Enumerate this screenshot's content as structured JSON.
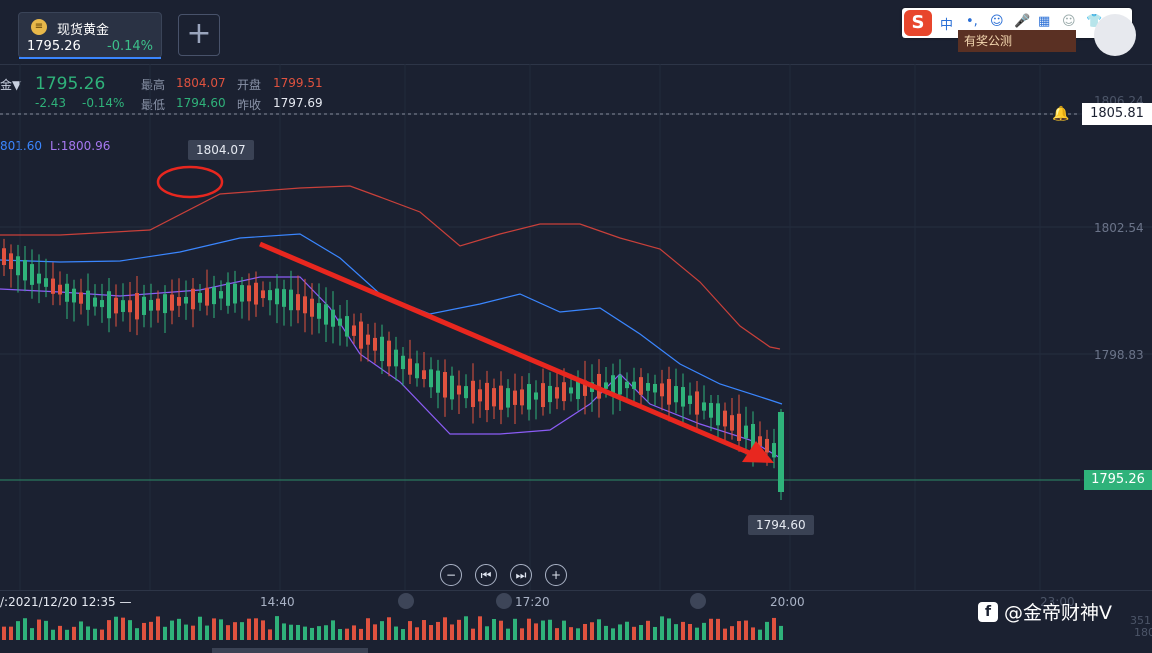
{
  "tab": {
    "name": "现货黄金",
    "price": "1795.26",
    "change": "-0.14%"
  },
  "add_button_label": "+",
  "ime": {
    "items": [
      "中",
      "•,",
      "☺",
      "🎤",
      "▦",
      "☺",
      "👕",
      "⠿"
    ]
  },
  "promo": "有奖公测",
  "quote": {
    "dropdown": "金▼",
    "last": "1795.26",
    "change_abs": "-2.43",
    "change_pct": "-0.14%",
    "high_label": "最高",
    "high_value": "1804.07",
    "low_label": "最低",
    "low_value": "1794.60",
    "open_label": "开盘",
    "open_value": "1799.51",
    "prev_close_label": "昨收",
    "prev_close_value": "1797.69"
  },
  "indicator": {
    "mid": "801.60",
    "lower": "L:1800.96"
  },
  "y_axis": {
    "ticks": [
      "1806.24",
      "1802.54",
      "1798.83"
    ]
  },
  "current_price_label": "1805.81",
  "last_price_tag": "1795.26",
  "high_tip": "1804.07",
  "low_tip": "1794.60",
  "controls": {
    "zoom_out": "−",
    "prev": "⏮",
    "next": "⏭",
    "zoom_in": "+"
  },
  "time_axis": {
    "cursor": "/:2021/12/20 12:35 —",
    "t1": "14:40",
    "t2": "17:20",
    "t3": "20:00",
    "t4": "23:00"
  },
  "volume_axis": {
    "top": "351",
    "bottom": "180"
  },
  "watermark": "@金帝财神V",
  "colors": {
    "up": "#e0523f",
    "down": "#2fb27a",
    "bg": "#1b2131",
    "band": "#c9403a",
    "mid": "#3a86ff",
    "low": "#8b5cf6",
    "arrow": "#e8271f"
  }
}
